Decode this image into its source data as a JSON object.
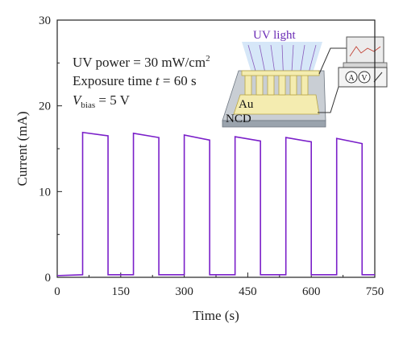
{
  "chart_data": {
    "type": "line",
    "title": "",
    "xlabel": "Time (s)",
    "ylabel": "Current (mA)",
    "xlim": [
      0,
      750
    ],
    "ylim": [
      0,
      30
    ],
    "x_ticks": [
      "0",
      "150",
      "300",
      "450",
      "600",
      "750"
    ],
    "y_ticks": [
      "0",
      "10",
      "20",
      "30"
    ],
    "grid": false,
    "series": [
      {
        "color": "#7a1fc9",
        "x": [
          0,
          60,
          60,
          120,
          120,
          180,
          180,
          240,
          240,
          300,
          300,
          360,
          360,
          420,
          420,
          480,
          480,
          540,
          540,
          600,
          600,
          660,
          660,
          720,
          720,
          750
        ],
        "y": [
          0.2,
          0.3,
          16.9,
          16.5,
          0.3,
          0.3,
          16.8,
          16.3,
          0.3,
          0.3,
          16.6,
          16.0,
          0.3,
          0.3,
          16.4,
          15.9,
          0.3,
          0.3,
          16.3,
          15.8,
          0.3,
          0.3,
          16.2,
          15.6,
          0.3,
          0.3
        ]
      }
    ],
    "annotations": {
      "uv_power_label": "UV power = 30 mW/cm",
      "uv_power_sup": "2",
      "exposure_label": "Exposure time ",
      "exposure_var": "t",
      "exposure_value": " = 60 s",
      "vbias_var": "V",
      "vbias_sub": "bias",
      "vbias_value": " = 5 V"
    },
    "inset": {
      "uv_light": "UV light",
      "au": "Au",
      "ncd": "NCD",
      "meter_a": "A",
      "meter_v": "V"
    }
  }
}
